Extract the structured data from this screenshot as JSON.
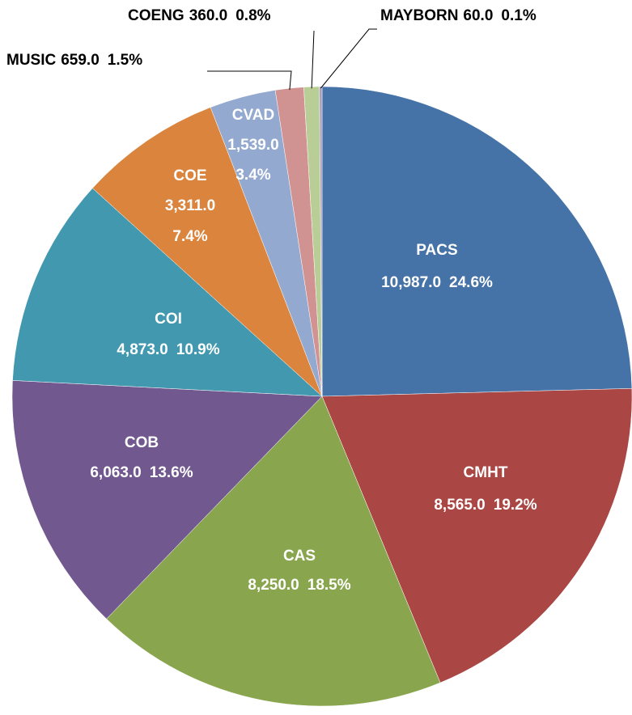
{
  "chart_data": {
    "type": "pie",
    "categories": [
      "PACS",
      "CMHT",
      "CAS",
      "COB",
      "COI",
      "COE",
      "CVAD",
      "MUSIC",
      "COENG",
      "MAYBORN"
    ],
    "values": [
      10987,
      8565,
      8250,
      6063,
      4873,
      3311,
      1539,
      659,
      360,
      60
    ],
    "value_labels": [
      "10,987.0",
      "8,565.0",
      "8,250.0",
      "6,063.0",
      "4,873.0",
      "3,311.0",
      "1,539.0",
      "659.0",
      "360.0",
      "60.0"
    ],
    "percent_labels": [
      "24.6%",
      "19.2%",
      "18.5%",
      "13.6%",
      "10.9%",
      "7.4%",
      "3.4%",
      "1.5%",
      "0.8%",
      "0.1%"
    ],
    "colors": [
      "#4572a7",
      "#aa4643",
      "#89a54e",
      "#71588f",
      "#4198af",
      "#db843d",
      "#93a9cf",
      "#d19392",
      "#b9cd96",
      "#a99bbd"
    ]
  }
}
